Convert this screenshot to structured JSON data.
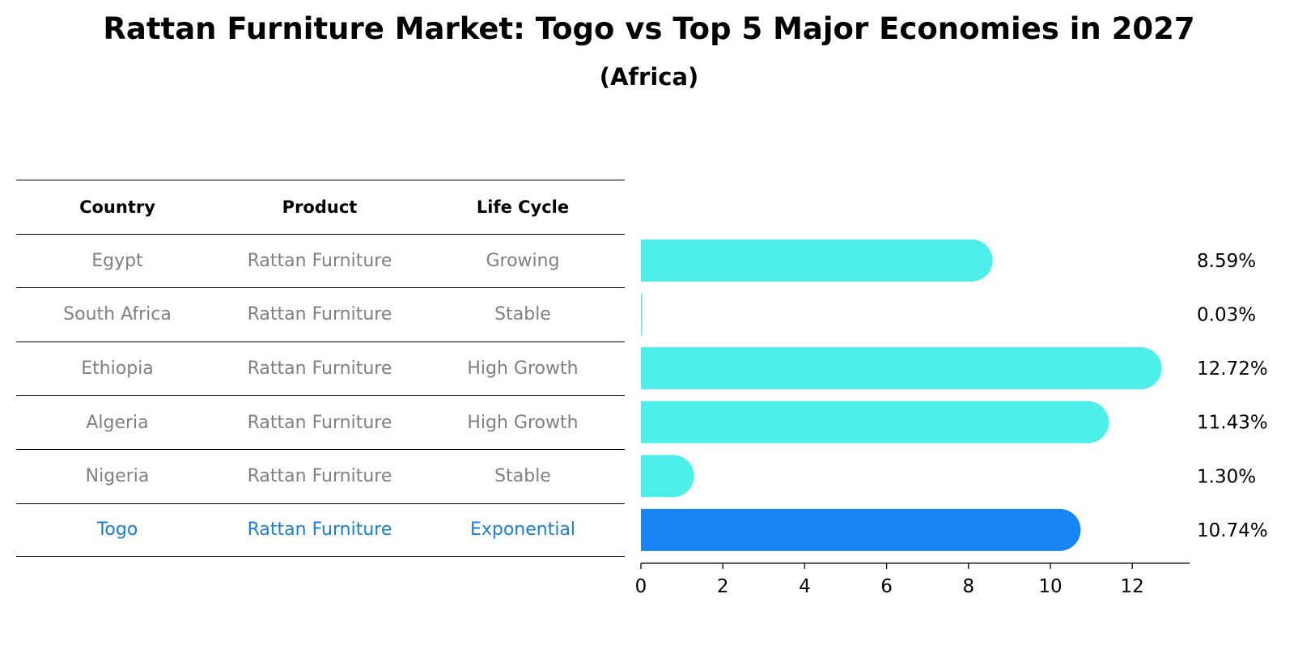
{
  "title": "Rattan Furniture Market: Togo vs Top 5 Major Economies in 2027",
  "subtitle": "(Africa)",
  "table": {
    "headers": [
      "Country",
      "Product",
      "Life Cycle"
    ],
    "rows": [
      {
        "country": "Egypt",
        "product": "Rattan Furniture",
        "life_cycle": "Growing"
      },
      {
        "country": "South Africa",
        "product": "Rattan Furniture",
        "life_cycle": "Stable"
      },
      {
        "country": "Ethiopia",
        "product": "Rattan Furniture",
        "life_cycle": "High Growth"
      },
      {
        "country": "Algeria",
        "product": "Rattan Furniture",
        "life_cycle": "High Growth"
      },
      {
        "country": "Nigeria",
        "product": "Rattan Furniture",
        "life_cycle": "Stable"
      },
      {
        "country": "Togo",
        "product": "Rattan Furniture",
        "life_cycle": "Exponential"
      }
    ]
  },
  "chart_data": {
    "type": "bar",
    "orientation": "horizontal",
    "categories": [
      "Egypt",
      "South Africa",
      "Ethiopia",
      "Algeria",
      "Nigeria",
      "Togo"
    ],
    "values": [
      8.59,
      0.03,
      12.72,
      11.43,
      1.3,
      10.74
    ],
    "value_labels": [
      "8.59%",
      "0.03%",
      "12.72%",
      "11.43%",
      "1.30%",
      "10.74%"
    ],
    "highlight": "Togo",
    "xticks": [
      0,
      2,
      4,
      6,
      8,
      10,
      12
    ],
    "xlim": [
      0,
      13.4
    ],
    "grid": false,
    "colors": {
      "default": "#4eeeea",
      "highlight": "#1984f5"
    }
  }
}
